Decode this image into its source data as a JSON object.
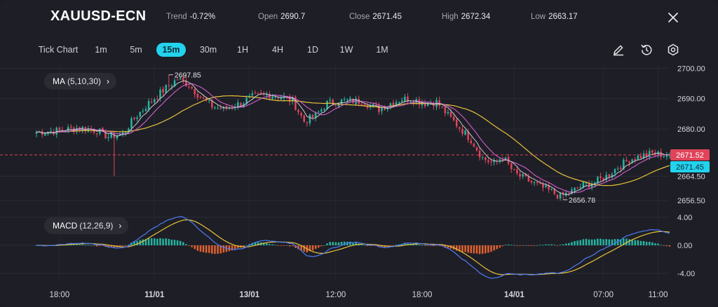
{
  "header": {
    "symbol": "XAUUSD-ECN",
    "stats": [
      {
        "key": "Trend",
        "value": "-0.72%"
      },
      {
        "key": "Open",
        "value": "2690.7"
      },
      {
        "key": "Close",
        "value": "2671.45"
      },
      {
        "key": "High",
        "value": "2672.34"
      },
      {
        "key": "Low",
        "value": "2663.17"
      }
    ],
    "close_icon": "close-icon"
  },
  "toolbar": {
    "timeframes": [
      "Tick Chart",
      "1m",
      "5m",
      "15m",
      "30m",
      "1H",
      "4H",
      "1D",
      "1W",
      "1M"
    ],
    "active": "15m",
    "tools": [
      "pencil-icon",
      "replay-icon",
      "settings-icon"
    ]
  },
  "indicators": {
    "ma_label": "MA",
    "ma_params": "(5,10,30)",
    "macd_label": "MACD",
    "macd_params": "(12,26,9)"
  },
  "colors": {
    "up": "#26b3a0",
    "down": "#e0445a",
    "ma5": "#c8c8d4",
    "ma10": "#d35fd0",
    "ma30": "#e8c33b",
    "dif": "#4d7cf5",
    "dea": "#e8c33b",
    "current_price_bg": "#e0445a",
    "close_tag_bg": "#22d3ee"
  },
  "chart_data": {
    "type": "candlestick",
    "price_axis": {
      "ticks": [
        {
          "value": 2700,
          "label": "2700.00"
        },
        {
          "value": 2690,
          "label": "2690.00"
        },
        {
          "value": 2680,
          "label": "2680.00"
        },
        {
          "value": 2664.5,
          "label": "2664.50"
        },
        {
          "value": 2656.5,
          "label": "2656.50"
        }
      ],
      "range": [
        2654,
        2701
      ]
    },
    "current_price": {
      "value": 2671.52,
      "label": "2671.52"
    },
    "close_tag": {
      "value": 2671.45,
      "label": "2671.45"
    },
    "annotations": [
      {
        "label": "2697.85",
        "value": 2697.85,
        "bar_index": 46
      },
      {
        "label": "2656.78",
        "value": 2656.78,
        "bar_index": 183
      }
    ],
    "anchors": [
      [
        0,
        2679
      ],
      [
        8,
        2679.5
      ],
      [
        15,
        2680.5
      ],
      [
        21,
        2679.5
      ],
      [
        25,
        2677.5
      ],
      [
        30,
        2678.5
      ],
      [
        34,
        2683.5
      ],
      [
        39,
        2688.5
      ],
      [
        45,
        2693.5
      ],
      [
        49,
        2696.5
      ],
      [
        53,
        2694.5
      ],
      [
        57,
        2690.5
      ],
      [
        61,
        2687.5
      ],
      [
        65,
        2686.5
      ],
      [
        71,
        2688.5
      ],
      [
        75,
        2690.5
      ],
      [
        81,
        2691.3
      ],
      [
        85,
        2690.6
      ],
      [
        89,
        2689.3
      ],
      [
        93,
        2682.5
      ],
      [
        97,
        2684.5
      ],
      [
        101,
        2688.5
      ],
      [
        107,
        2689.3
      ],
      [
        113,
        2689.1
      ],
      [
        119,
        2686.5
      ],
      [
        123,
        2688.5
      ],
      [
        127,
        2689.9
      ],
      [
        131,
        2689.7
      ],
      [
        135,
        2688.5
      ],
      [
        139,
        2688.9
      ],
      [
        143,
        2684.5
      ],
      [
        147,
        2680.5
      ],
      [
        151,
        2676.5
      ],
      [
        155,
        2670.5
      ],
      [
        159,
        2668.5
      ],
      [
        162,
        2671
      ],
      [
        166,
        2665.5
      ],
      [
        170,
        2663.5
      ],
      [
        174,
        2661.5
      ],
      [
        178,
        2659.8
      ],
      [
        182,
        2657.8
      ],
      [
        186,
        2659.5
      ],
      [
        190,
        2661.5
      ],
      [
        194,
        2662.5
      ],
      [
        198,
        2664.5
      ],
      [
        202,
        2667.5
      ],
      [
        206,
        2670
      ],
      [
        210,
        2671.1
      ],
      [
        214,
        2672
      ],
      [
        218,
        2671.5
      ],
      [
        220,
        2671.45
      ]
    ],
    "spikes": [
      {
        "bar_index": 27,
        "low": 2664.5
      },
      {
        "bar_index": 46,
        "high": 2697.85
      },
      {
        "bar_index": 183,
        "low": 2656.78
      }
    ],
    "macd_axis": {
      "ticks": [
        {
          "value": 4,
          "label": "4.00"
        },
        {
          "value": 0,
          "label": "0.00"
        },
        {
          "value": -4,
          "label": "-4.00"
        }
      ],
      "range": [
        -5,
        5
      ]
    },
    "time_axis": [
      {
        "label": "18:00",
        "bar_index": 8
      },
      {
        "label": "11/01",
        "bar_index": 41
      },
      {
        "label": "13/01",
        "bar_index": 74
      },
      {
        "label": "12:00",
        "bar_index": 104
      },
      {
        "label": "18:00",
        "bar_index": 134
      },
      {
        "label": "14/01",
        "bar_index": 166
      },
      {
        "label": "07:00",
        "bar_index": 197
      },
      {
        "label": "11:00",
        "bar_index": 216
      }
    ],
    "bar_count": 221
  }
}
